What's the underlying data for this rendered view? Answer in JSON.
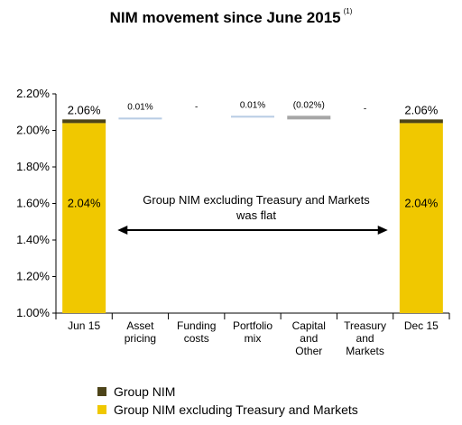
{
  "title": "NIM movement since June 2015",
  "title_note": "(1)",
  "chart_data": {
    "type": "bar",
    "subtype": "waterfall",
    "categories": [
      "Jun 15",
      "Asset pricing",
      "Funding costs",
      "Portfolio mix",
      "Capital and Other",
      "Treasury and Markets",
      "Dec 15"
    ],
    "category_lines": [
      [
        "Jun 15"
      ],
      [
        "Asset",
        "pricing"
      ],
      [
        "Funding",
        "costs"
      ],
      [
        "Portfolio",
        "mix"
      ],
      [
        "Capital",
        "and",
        "Other"
      ],
      [
        "Treasury",
        "and",
        "Markets"
      ],
      [
        "Dec 15"
      ]
    ],
    "ylim": [
      1.0,
      2.2
    ],
    "yticks": [
      "1.00%",
      "1.20%",
      "1.40%",
      "1.60%",
      "1.80%",
      "2.00%",
      "2.20%"
    ],
    "ytick_values": [
      1.0,
      1.2,
      1.4,
      1.6,
      1.8,
      2.0,
      2.2
    ],
    "series": [
      {
        "name": "Group NIM",
        "color": "#4d4419"
      },
      {
        "name": "Group NIM excluding Treasury and Markets",
        "color": "#f0c800"
      }
    ],
    "totals": [
      {
        "category": "Jun 15",
        "group_nim": 2.06,
        "group_nim_label": "2.06%",
        "excl_tm": 2.04,
        "excl_tm_label": "2.04%"
      },
      {
        "category": "Dec 15",
        "group_nim": 2.06,
        "group_nim_label": "2.06%",
        "excl_tm": 2.04,
        "excl_tm_label": "2.04%"
      }
    ],
    "movements": [
      {
        "category": "Asset pricing",
        "value": 0.01,
        "label": "0.01%",
        "color": "#b8cce4"
      },
      {
        "category": "Funding costs",
        "value": 0.0,
        "label": "-",
        "color": "#b8cce4"
      },
      {
        "category": "Portfolio mix",
        "value": 0.01,
        "label": "0.01%",
        "color": "#b8cce4"
      },
      {
        "category": "Capital and Other",
        "value": -0.02,
        "label": "(0.02%)",
        "color": "#a6a6a6"
      },
      {
        "category": "Treasury and Markets",
        "value": 0.0,
        "label": "-",
        "color": "#b8cce4"
      }
    ],
    "annotation": [
      "Group NIM excluding Treasury and Markets",
      "was flat"
    ],
    "legend_position": "bottom"
  }
}
